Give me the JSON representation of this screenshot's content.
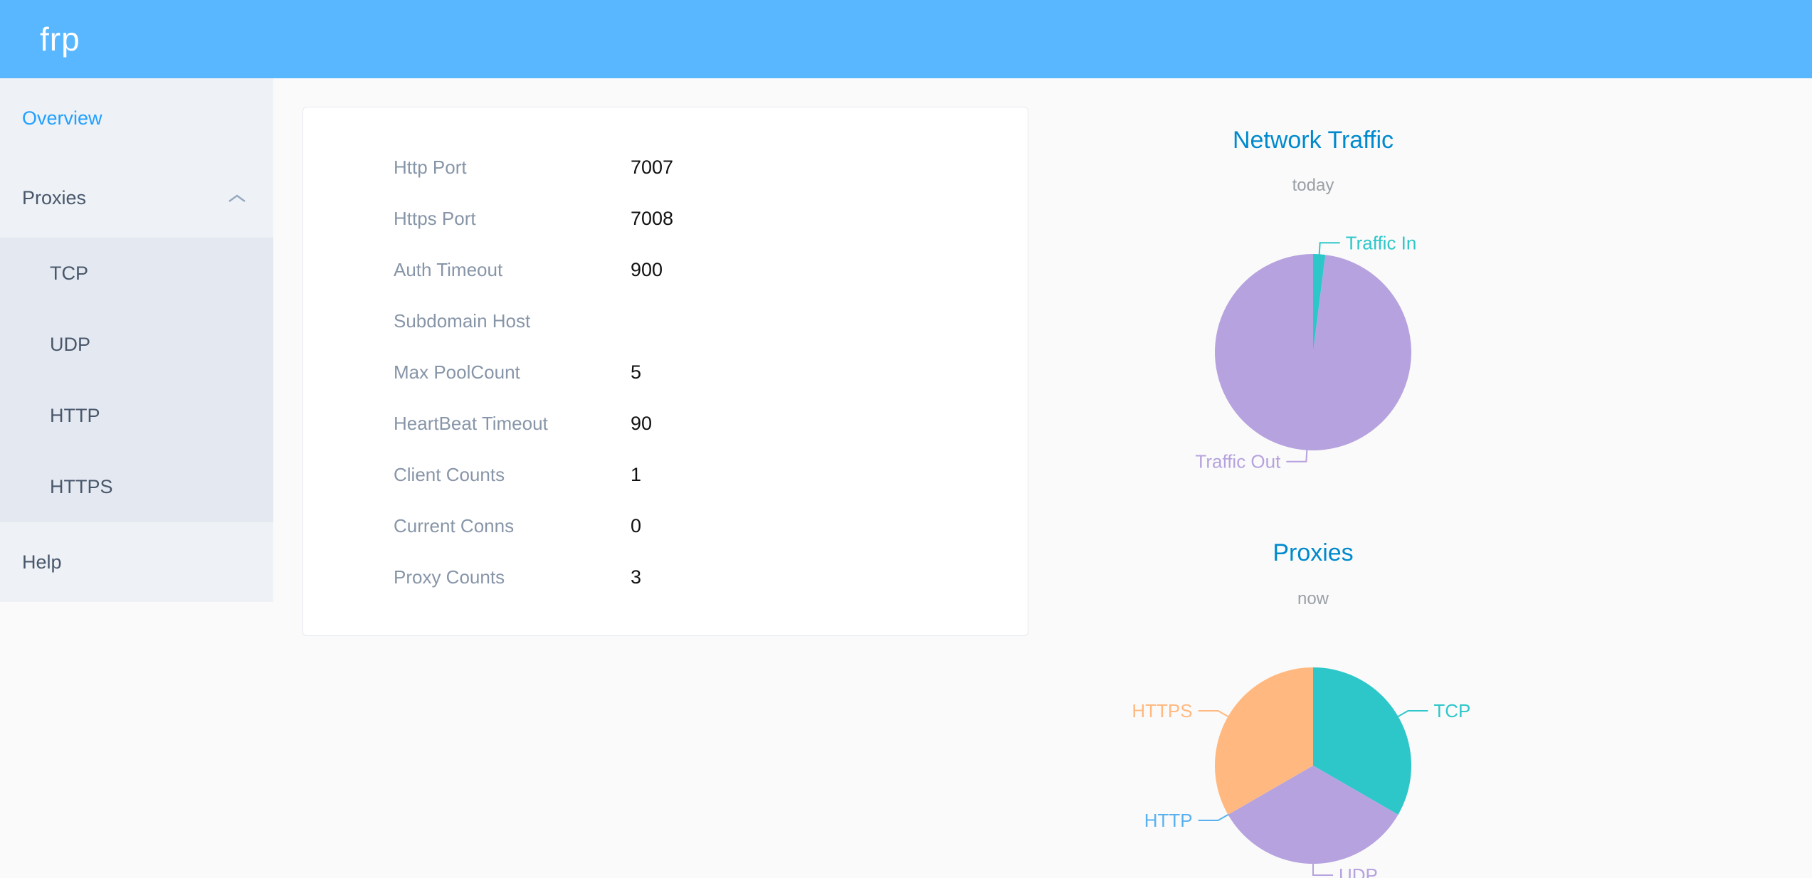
{
  "header": {
    "logo": "frp"
  },
  "sidebar": {
    "items": [
      {
        "label": "Overview",
        "active": true
      },
      {
        "label": "Proxies",
        "expanded": true,
        "children": [
          "TCP",
          "UDP",
          "HTTP",
          "HTTPS"
        ]
      },
      {
        "label": "Help"
      }
    ]
  },
  "overview": {
    "rows": [
      {
        "label": "Http Port",
        "value": "7007"
      },
      {
        "label": "Https Port",
        "value": "7008"
      },
      {
        "label": "Auth Timeout",
        "value": "900"
      },
      {
        "label": "Subdomain Host",
        "value": ""
      },
      {
        "label": "Max PoolCount",
        "value": "5"
      },
      {
        "label": "HeartBeat Timeout",
        "value": "90"
      },
      {
        "label": "Client Counts",
        "value": "1"
      },
      {
        "label": "Current Conns",
        "value": "0"
      },
      {
        "label": "Proxy Counts",
        "value": "3"
      }
    ]
  },
  "chart_data": [
    {
      "type": "pie",
      "title": "Network Traffic",
      "subtitle": "today",
      "labels": [
        "Traffic In",
        "Traffic Out"
      ],
      "values": [
        2,
        98
      ],
      "values_unit": "% of today's traffic (estimated from pie proportions)",
      "colors": [
        "#2ec7c9",
        "#b6a2de"
      ],
      "legend_position": "none",
      "start_angle_deg": 0
    },
    {
      "type": "pie",
      "title": "Proxies",
      "subtitle": "now",
      "labels": [
        "TCP",
        "UDP",
        "HTTP",
        "HTTPS"
      ],
      "values": [
        1,
        1,
        0,
        1
      ],
      "values_unit": "proxy counts",
      "colors": [
        "#2ec7c9",
        "#b6a2de",
        "#5ab1ef",
        "#ffb980"
      ],
      "legend_position": "none",
      "start_angle_deg": 0
    }
  ],
  "colors": {
    "header_bg": "#58B7FF",
    "page_bg": "#fafafa",
    "sidebar_bg": "#eef1f6",
    "submenu_bg": "#e4e8f1",
    "menu_text": "#48576a",
    "active_link": "#20a0ff",
    "chart_title": "#008acd",
    "subtitle": "#9aa0a6",
    "label_gray": "#8795a8",
    "value_color": "#111111",
    "card_border": "#e5e9f2"
  }
}
